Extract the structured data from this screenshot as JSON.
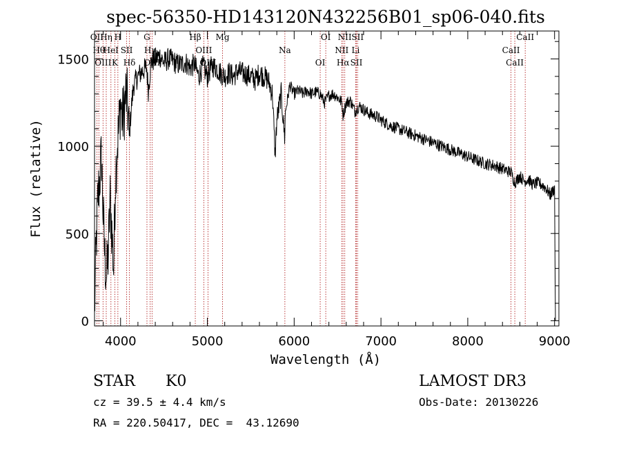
{
  "chart_data": {
    "type": "line",
    "title": "spec-56350-HD143120N432256B01_sp06-040.fits",
    "xlabel": "Wavelength (Å)",
    "ylabel": "Flux (relative)",
    "xlim": [
      3700,
      9050
    ],
    "ylim": [
      -30,
      1660
    ],
    "x_ticks": [
      4000,
      5000,
      6000,
      7000,
      8000,
      9000
    ],
    "x_tick_labels": [
      "4000",
      "5000",
      "6000",
      "7000",
      "8000",
      "9000"
    ],
    "y_ticks": [
      0,
      500,
      1000,
      1500
    ],
    "y_tick_labels": [
      "0",
      "500",
      "1000",
      "1500"
    ],
    "series": [
      {
        "name": "flux",
        "x": [
          3700,
          3720,
          3740,
          3760,
          3780,
          3800,
          3820,
          3840,
          3860,
          3880,
          3900,
          3920,
          3940,
          3960,
          3980,
          4000,
          4020,
          4040,
          4060,
          4080,
          4100,
          4120,
          4150,
          4200,
          4250,
          4300,
          4320,
          4350,
          4400,
          4450,
          4500,
          4550,
          4600,
          4650,
          4700,
          4750,
          4800,
          4850,
          4900,
          4950,
          5000,
          5050,
          5100,
          5150,
          5200,
          5250,
          5300,
          5350,
          5400,
          5450,
          5500,
          5550,
          5600,
          5650,
          5700,
          5750,
          5780,
          5800,
          5850,
          5890,
          5900,
          5950,
          6000,
          6050,
          6100,
          6150,
          6200,
          6250,
          6300,
          6350,
          6400,
          6450,
          6500,
          6550,
          6563,
          6600,
          6650,
          6700,
          6750,
          6800,
          6850,
          6900,
          6950,
          7000,
          7100,
          7200,
          7300,
          7400,
          7500,
          7600,
          7700,
          7800,
          7900,
          8000,
          8100,
          8200,
          8300,
          8400,
          8500,
          8542,
          8600,
          8650,
          8700,
          8750,
          8800,
          8850,
          8900,
          8950,
          9000,
          9010
        ],
        "values": [
          50,
          450,
          700,
          820,
          950,
          600,
          350,
          250,
          400,
          700,
          500,
          300,
          800,
          1000,
          1100,
          1250,
          1150,
          1200,
          1300,
          1250,
          1050,
          1200,
          1350,
          1400,
          1430,
          1450,
          1320,
          1480,
          1500,
          1520,
          1480,
          1500,
          1490,
          1470,
          1470,
          1480,
          1450,
          1470,
          1400,
          1460,
          1400,
          1460,
          1450,
          1420,
          1400,
          1420,
          1400,
          1430,
          1420,
          1410,
          1400,
          1380,
          1420,
          1400,
          1380,
          1300,
          950,
          1150,
          1300,
          1050,
          1200,
          1350,
          1300,
          1320,
          1300,
          1320,
          1300,
          1310,
          1300,
          1250,
          1290,
          1300,
          1280,
          1250,
          1180,
          1250,
          1260,
          1200,
          1230,
          1210,
          1190,
          1180,
          1170,
          1150,
          1120,
          1100,
          1080,
          1060,
          1040,
          1020,
          1000,
          980,
          960,
          940,
          920,
          900,
          890,
          870,
          850,
          790,
          830,
          800,
          810,
          780,
          790,
          780,
          760,
          720,
          760,
          0
        ]
      }
    ],
    "lines": [
      {
        "w": 3727,
        "label": "OII"
      },
      {
        "w": 3750,
        "label": "Hθ"
      },
      {
        "w": 3798,
        "label": "OIII"
      },
      {
        "w": 3835,
        "label": "Hη"
      },
      {
        "w": 3889,
        "label": "HeI"
      },
      {
        "w": 3934,
        "label": "K"
      },
      {
        "w": 3969,
        "label": "H"
      },
      {
        "w": 4070,
        "label": "SII"
      },
      {
        "w": 4102,
        "label": "Hδ"
      },
      {
        "w": 4304,
        "label": "G"
      },
      {
        "w": 4341,
        "label": "Hγ"
      },
      {
        "w": 4363,
        "label": "OIII"
      },
      {
        "w": 4861,
        "label": "Hβ"
      },
      {
        "w": 4959,
        "label": "OIII"
      },
      {
        "w": 5007,
        "label": "OIII"
      },
      {
        "w": 5175,
        "label": "Mg"
      },
      {
        "w": 5893,
        "label": "Na"
      },
      {
        "w": 6300,
        "label": "OI"
      },
      {
        "w": 6364,
        "label": "OI"
      },
      {
        "w": 6548,
        "label": "NII"
      },
      {
        "w": 6563,
        "label": "Hα"
      },
      {
        "w": 6583,
        "label": "NII"
      },
      {
        "w": 6708,
        "label": "Li"
      },
      {
        "w": 6717,
        "label": "SII"
      },
      {
        "w": 6731,
        "label": "SII"
      },
      {
        "w": 8498,
        "label": "CaII"
      },
      {
        "w": 8542,
        "label": "CaII"
      },
      {
        "w": 8662,
        "label": "CaII"
      }
    ]
  },
  "info": {
    "class": "STAR",
    "subclass": "K0",
    "survey": "LAMOST DR3",
    "cz": "cz = 39.5 ± 4.4 km/s",
    "obs_date": "Obs-Date: 20130226",
    "radec": "RA = 220.50417, DEC =  43.12690"
  }
}
